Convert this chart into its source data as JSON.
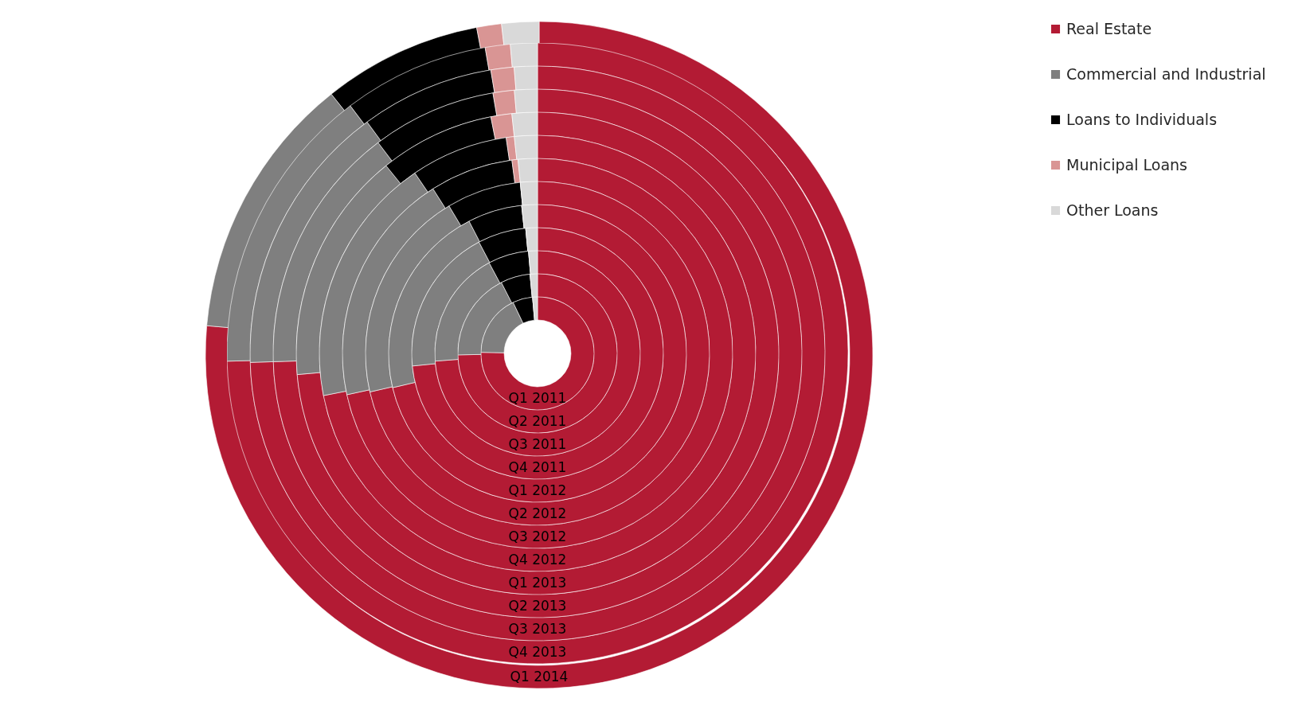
{
  "chart_data": [
    {
      "type": "donut",
      "colors": [
        "#b31b34",
        "#7f7f7f",
        "#000000",
        "#d99594",
        "#d9d9d9"
      ],
      "series": [
        {
          "name": "Q1 2011",
          "values": [
            75.3,
            17.6,
            5.7,
            0,
            1.4
          ]
        }
      ]
    },
    {
      "type": "donut",
      "colors": [
        "#b31b34",
        "#7f7f7f",
        "#000000",
        "#d99594",
        "#d9d9d9"
      ],
      "series": [
        {
          "name": "Q2 2011",
          "values": [
            74.7,
            17.8,
            6.0,
            0,
            1.5
          ]
        }
      ]
    },
    {
      "type": "donut",
      "colors": [
        "#b31b34",
        "#7f7f7f",
        "#000000",
        "#d99594",
        "#d9d9d9"
      ],
      "series": [
        {
          "name": "Q3 2011",
          "values": [
            73.8,
            18.4,
            6.4,
            0,
            1.4
          ]
        }
      ]
    },
    {
      "type": "donut",
      "colors": [
        "#b31b34",
        "#7f7f7f",
        "#000000",
        "#d99594",
        "#d9d9d9"
      ],
      "series": [
        {
          "name": "Q4 2011",
          "values": [
            73.4,
            18.9,
            6.2,
            0,
            1.5
          ]
        }
      ]
    },
    {
      "type": "donut",
      "colors": [
        "#b31b34",
        "#7f7f7f",
        "#000000",
        "#d99594",
        "#d9d9d9"
      ],
      "series": [
        {
          "name": "Q1 2012",
          "values": [
            71.3,
            21.1,
            5.9,
            0,
            1.7
          ]
        }
      ]
    },
    {
      "type": "donut",
      "colors": [
        "#b31b34",
        "#7f7f7f",
        "#000000",
        "#d99594",
        "#d9d9d9"
      ],
      "series": [
        {
          "name": "Q2 2012",
          "values": [
            71.4,
            20.0,
            7.0,
            0,
            1.6
          ]
        }
      ]
    },
    {
      "type": "donut",
      "colors": [
        "#b31b34",
        "#7f7f7f",
        "#000000",
        "#d99594",
        "#d9d9d9"
      ],
      "series": [
        {
          "name": "Q3 2012",
          "values": [
            71.6,
            19.4,
            6.9,
            0.5,
            1.6
          ]
        }
      ]
    },
    {
      "type": "donut",
      "colors": [
        "#b31b34",
        "#7f7f7f",
        "#000000",
        "#d99594",
        "#d9d9d9"
      ],
      "series": [
        {
          "name": "Q4 2012",
          "values": [
            71.9,
            18.6,
            7.2,
            0.6,
            1.7
          ]
        }
      ]
    },
    {
      "type": "donut",
      "colors": [
        "#b31b34",
        "#7f7f7f",
        "#000000",
        "#d99594",
        "#d9d9d9"
      ],
      "series": [
        {
          "name": "Q1 2013",
          "values": [
            73.6,
            15.6,
            7.7,
            1.4,
            1.7
          ]
        }
      ]
    },
    {
      "type": "donut",
      "colors": [
        "#b31b34",
        "#7f7f7f",
        "#000000",
        "#d99594",
        "#d9d9d9"
      ],
      "series": [
        {
          "name": "Q2 2013",
          "values": [
            74.5,
            15.2,
            7.6,
            1.3,
            1.4
          ]
        }
      ]
    },
    {
      "type": "donut",
      "colors": [
        "#b31b34",
        "#7f7f7f",
        "#000000",
        "#d99594",
        "#d9d9d9"
      ],
      "series": [
        {
          "name": "Q3 2013",
          "values": [
            74.5,
            15.4,
            7.5,
            1.3,
            1.3
          ]
        }
      ]
    },
    {
      "type": "donut",
      "colors": [
        "#b31b34",
        "#7f7f7f",
        "#000000",
        "#d99594",
        "#d9d9d9"
      ],
      "series": [
        {
          "name": "Q4 2013",
          "values": [
            74.6,
            15.1,
            7.6,
            1.3,
            1.4
          ]
        }
      ]
    },
    {
      "type": "donut",
      "categories": [
        "Real Estate",
        "Commercial and Industrial",
        "Loans to Individuals",
        "Municipal Loans",
        "Other Loans"
      ],
      "colors": [
        "#b31b34",
        "#7f7f7f",
        "#000000",
        "#d99594",
        "#d9d9d9"
      ],
      "series": [
        {
          "name": "Q1 2014",
          "values": [
            76.4,
            12.9,
            7.7,
            1.2,
            1.8
          ]
        }
      ],
      "legend": "right"
    }
  ]
}
